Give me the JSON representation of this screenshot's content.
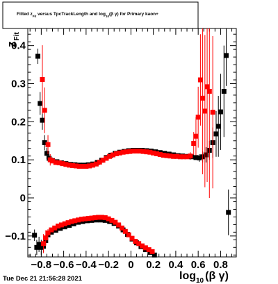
{
  "timestamp": "Tue Dec 21 21:56:28 2021",
  "chart_data": {
    "type": "scatter",
    "title": {
      "prefix": "Fitted  z",
      "prefix_sub": "Fit",
      "middle": " versus TpcTrackLength and log",
      "middle_sub": "10",
      "suffix": "(β γ) for Primary kaon+"
    },
    "xlabel": {
      "main": "log",
      "sub": "10",
      "tail": "(β γ)"
    },
    "ylabel": {
      "main": "z",
      "sub": "Fit"
    },
    "xlim": [
      -0.92,
      0.94
    ],
    "ylim": [
      -0.155,
      0.445
    ],
    "x_ticks": [
      -0.8,
      -0.6,
      -0.4,
      -0.2,
      0,
      0.2,
      0.4,
      0.6,
      0.8
    ],
    "x_tick_labels": [
      "−0.8",
      "−0.6",
      "−0.4",
      "−0.2",
      "0",
      "0.2",
      "0.4",
      "0.6",
      "0.8"
    ],
    "y_ticks": [
      -0.1,
      0,
      0.1,
      0.2,
      0.3,
      0.4
    ],
    "y_tick_labels": [
      "−0.1",
      "0",
      "0.1",
      "0.2",
      "0.3",
      "0.4"
    ],
    "grid": false,
    "colors": {
      "black_series": "#000000",
      "red_series": "#ff0000"
    },
    "series": [
      {
        "color": "black",
        "upper": [
          {
            "x": -0.83,
            "y": 0.372,
            "err": 0.02
          },
          {
            "x": -0.81,
            "y": 0.248,
            "err": 0.03
          },
          {
            "x": -0.79,
            "y": 0.204,
            "err": 0.025
          },
          {
            "x": -0.77,
            "y": 0.145,
            "err": 0.02
          },
          {
            "x": -0.75,
            "y": 0.117,
            "err": 0.015
          },
          {
            "x": -0.73,
            "y": 0.104,
            "err": 0.01
          },
          {
            "x": -0.7,
            "y": 0.098
          },
          {
            "x": -0.66,
            "y": 0.095
          },
          {
            "x": -0.62,
            "y": 0.092
          },
          {
            "x": -0.58,
            "y": 0.09
          },
          {
            "x": -0.54,
            "y": 0.088
          },
          {
            "x": -0.5,
            "y": 0.087
          },
          {
            "x": -0.46,
            "y": 0.086
          },
          {
            "x": -0.42,
            "y": 0.086
          },
          {
            "x": -0.38,
            "y": 0.087
          },
          {
            "x": -0.34,
            "y": 0.089
          },
          {
            "x": -0.3,
            "y": 0.093
          },
          {
            "x": -0.26,
            "y": 0.099
          },
          {
            "x": -0.22,
            "y": 0.106
          },
          {
            "x": -0.18,
            "y": 0.112
          },
          {
            "x": -0.14,
            "y": 0.117
          },
          {
            "x": -0.1,
            "y": 0.12
          },
          {
            "x": -0.06,
            "y": 0.122
          },
          {
            "x": -0.02,
            "y": 0.124
          },
          {
            "x": 0.02,
            "y": 0.125
          },
          {
            "x": 0.06,
            "y": 0.125
          },
          {
            "x": 0.1,
            "y": 0.125
          },
          {
            "x": 0.14,
            "y": 0.124
          },
          {
            "x": 0.18,
            "y": 0.123
          },
          {
            "x": 0.22,
            "y": 0.121
          },
          {
            "x": 0.26,
            "y": 0.119
          },
          {
            "x": 0.3,
            "y": 0.117
          },
          {
            "x": 0.34,
            "y": 0.115
          },
          {
            "x": 0.38,
            "y": 0.113
          },
          {
            "x": 0.42,
            "y": 0.111
          },
          {
            "x": 0.46,
            "y": 0.11
          },
          {
            "x": 0.5,
            "y": 0.109
          },
          {
            "x": 0.54,
            "y": 0.108
          },
          {
            "x": 0.58,
            "y": 0.106
          },
          {
            "x": 0.61,
            "y": 0.105,
            "err": 0.01
          },
          {
            "x": 0.64,
            "y": 0.108,
            "err": 0.015
          },
          {
            "x": 0.67,
            "y": 0.113,
            "err": 0.02
          },
          {
            "x": 0.7,
            "y": 0.125,
            "err": 0.025
          },
          {
            "x": 0.73,
            "y": 0.145,
            "err": 0.04
          },
          {
            "x": 0.76,
            "y": 0.168,
            "err": 0.06
          },
          {
            "x": 0.78,
            "y": 0.188,
            "err": 0.08
          },
          {
            "x": 0.8,
            "y": 0.226,
            "err": 0.1
          },
          {
            "x": 0.83,
            "y": 0.28,
            "err": 0.12
          },
          {
            "x": 0.85,
            "y": 0.374,
            "err": 0.08
          }
        ],
        "lower": [
          {
            "x": -0.86,
            "y": -0.098,
            "err": 0.015
          },
          {
            "x": -0.84,
            "y": -0.13,
            "err": 0.02
          },
          {
            "x": -0.82,
            "y": -0.122,
            "err": 0.02
          },
          {
            "x": -0.8,
            "y": -0.13,
            "err": 0.02
          },
          {
            "x": -0.78,
            "y": -0.127,
            "err": 0.015
          },
          {
            "x": -0.76,
            "y": -0.112,
            "err": 0.01
          },
          {
            "x": -0.74,
            "y": -0.097
          },
          {
            "x": -0.71,
            "y": -0.09
          },
          {
            "x": -0.67,
            "y": -0.085
          },
          {
            "x": -0.63,
            "y": -0.08
          },
          {
            "x": -0.59,
            "y": -0.076
          },
          {
            "x": -0.55,
            "y": -0.072
          },
          {
            "x": -0.51,
            "y": -0.068
          },
          {
            "x": -0.47,
            "y": -0.064
          },
          {
            "x": -0.43,
            "y": -0.062
          },
          {
            "x": -0.39,
            "y": -0.06
          },
          {
            "x": -0.35,
            "y": -0.059
          },
          {
            "x": -0.31,
            "y": -0.058
          },
          {
            "x": -0.27,
            "y": -0.058
          },
          {
            "x": -0.23,
            "y": -0.059
          },
          {
            "x": -0.19,
            "y": -0.062
          },
          {
            "x": -0.15,
            "y": -0.067
          },
          {
            "x": -0.11,
            "y": -0.074
          },
          {
            "x": -0.07,
            "y": -0.084
          },
          {
            "x": -0.03,
            "y": -0.096
          },
          {
            "x": 0.01,
            "y": -0.108
          },
          {
            "x": 0.05,
            "y": -0.118
          },
          {
            "x": 0.09,
            "y": -0.128
          },
          {
            "x": 0.13,
            "y": -0.136
          },
          {
            "x": 0.17,
            "y": -0.143
          },
          {
            "x": 0.21,
            "y": -0.15
          },
          {
            "x": 0.87,
            "y": -0.038,
            "err": 0.06
          }
        ]
      },
      {
        "color": "red",
        "upper": [
          {
            "x": -0.79,
            "y": 0.311,
            "err": 0.09
          },
          {
            "x": -0.77,
            "y": 0.23,
            "err": 0.06
          },
          {
            "x": -0.74,
            "y": 0.14,
            "err": 0.025
          },
          {
            "x": -0.72,
            "y": 0.1,
            "err": 0.015
          },
          {
            "x": -0.7,
            "y": 0.097
          },
          {
            "x": -0.67,
            "y": 0.093
          },
          {
            "x": -0.64,
            "y": 0.092
          },
          {
            "x": -0.61,
            "y": 0.09
          },
          {
            "x": -0.58,
            "y": 0.088
          },
          {
            "x": -0.55,
            "y": 0.086
          },
          {
            "x": -0.52,
            "y": 0.085
          },
          {
            "x": -0.49,
            "y": 0.084
          },
          {
            "x": -0.46,
            "y": 0.083
          },
          {
            "x": -0.43,
            "y": 0.083
          },
          {
            "x": -0.4,
            "y": 0.083
          },
          {
            "x": -0.37,
            "y": 0.084
          },
          {
            "x": -0.34,
            "y": 0.086
          },
          {
            "x": -0.31,
            "y": 0.089
          },
          {
            "x": -0.28,
            "y": 0.094
          },
          {
            "x": -0.25,
            "y": 0.099
          },
          {
            "x": -0.22,
            "y": 0.104
          },
          {
            "x": -0.19,
            "y": 0.109
          },
          {
            "x": -0.16,
            "y": 0.113
          },
          {
            "x": -0.13,
            "y": 0.116
          },
          {
            "x": -0.1,
            "y": 0.118
          },
          {
            "x": -0.07,
            "y": 0.12
          },
          {
            "x": -0.04,
            "y": 0.121
          },
          {
            "x": -0.01,
            "y": 0.122
          },
          {
            "x": 0.02,
            "y": 0.123
          },
          {
            "x": 0.05,
            "y": 0.123
          },
          {
            "x": 0.08,
            "y": 0.123
          },
          {
            "x": 0.11,
            "y": 0.122
          },
          {
            "x": 0.14,
            "y": 0.121
          },
          {
            "x": 0.17,
            "y": 0.12
          },
          {
            "x": 0.2,
            "y": 0.118
          },
          {
            "x": 0.23,
            "y": 0.116
          },
          {
            "x": 0.26,
            "y": 0.114
          },
          {
            "x": 0.29,
            "y": 0.112
          },
          {
            "x": 0.32,
            "y": 0.111
          },
          {
            "x": 0.35,
            "y": 0.11
          },
          {
            "x": 0.38,
            "y": 0.109
          },
          {
            "x": 0.41,
            "y": 0.109
          },
          {
            "x": 0.44,
            "y": 0.108
          },
          {
            "x": 0.47,
            "y": 0.108
          },
          {
            "x": 0.5,
            "y": 0.108
          },
          {
            "x": 0.53,
            "y": 0.11,
            "err": 0.01
          },
          {
            "x": 0.56,
            "y": 0.143,
            "err": 0.03
          },
          {
            "x": 0.58,
            "y": 0.162,
            "err": 0.05
          },
          {
            "x": 0.6,
            "y": 0.212,
            "err": 0.08
          },
          {
            "x": 0.62,
            "y": 0.31,
            "err": 0.12
          },
          {
            "x": 0.64,
            "y": 0.262,
            "err": 0.2
          },
          {
            "x": 0.66,
            "y": 0.228,
            "err": 0.2
          },
          {
            "x": 0.68,
            "y": 0.292,
            "err": 0.25
          },
          {
            "x": 0.7,
            "y": 0.28,
            "err": 0.28
          },
          {
            "x": 0.73,
            "y": 0.225,
            "err": 0.2
          }
        ],
        "lower": [
          {
            "x": -0.78,
            "y": -0.12,
            "err": 0.025
          },
          {
            "x": -0.76,
            "y": -0.105,
            "err": 0.02
          },
          {
            "x": -0.74,
            "y": -0.092,
            "err": 0.01
          },
          {
            "x": -0.71,
            "y": -0.084
          },
          {
            "x": -0.68,
            "y": -0.079
          },
          {
            "x": -0.65,
            "y": -0.074
          },
          {
            "x": -0.62,
            "y": -0.071
          },
          {
            "x": -0.59,
            "y": -0.068
          },
          {
            "x": -0.56,
            "y": -0.065
          },
          {
            "x": -0.53,
            "y": -0.062
          },
          {
            "x": -0.5,
            "y": -0.06
          },
          {
            "x": -0.47,
            "y": -0.058
          },
          {
            "x": -0.44,
            "y": -0.056
          },
          {
            "x": -0.41,
            "y": -0.055
          },
          {
            "x": -0.38,
            "y": -0.054
          },
          {
            "x": -0.35,
            "y": -0.053
          },
          {
            "x": -0.32,
            "y": -0.052
          },
          {
            "x": -0.29,
            "y": -0.051
          },
          {
            "x": -0.26,
            "y": -0.051
          },
          {
            "x": -0.23,
            "y": -0.052
          },
          {
            "x": -0.2,
            "y": -0.055
          },
          {
            "x": -0.17,
            "y": -0.059
          },
          {
            "x": -0.14,
            "y": -0.064
          },
          {
            "x": -0.11,
            "y": -0.071
          },
          {
            "x": -0.08,
            "y": -0.079
          },
          {
            "x": -0.05,
            "y": -0.088
          },
          {
            "x": -0.02,
            "y": -0.097
          },
          {
            "x": 0.01,
            "y": -0.106
          },
          {
            "x": 0.04,
            "y": -0.114
          },
          {
            "x": 0.07,
            "y": -0.12
          },
          {
            "x": 0.1,
            "y": -0.126
          },
          {
            "x": 0.13,
            "y": -0.131
          },
          {
            "x": 0.16,
            "y": -0.136
          },
          {
            "x": 0.19,
            "y": -0.141
          }
        ]
      }
    ]
  }
}
